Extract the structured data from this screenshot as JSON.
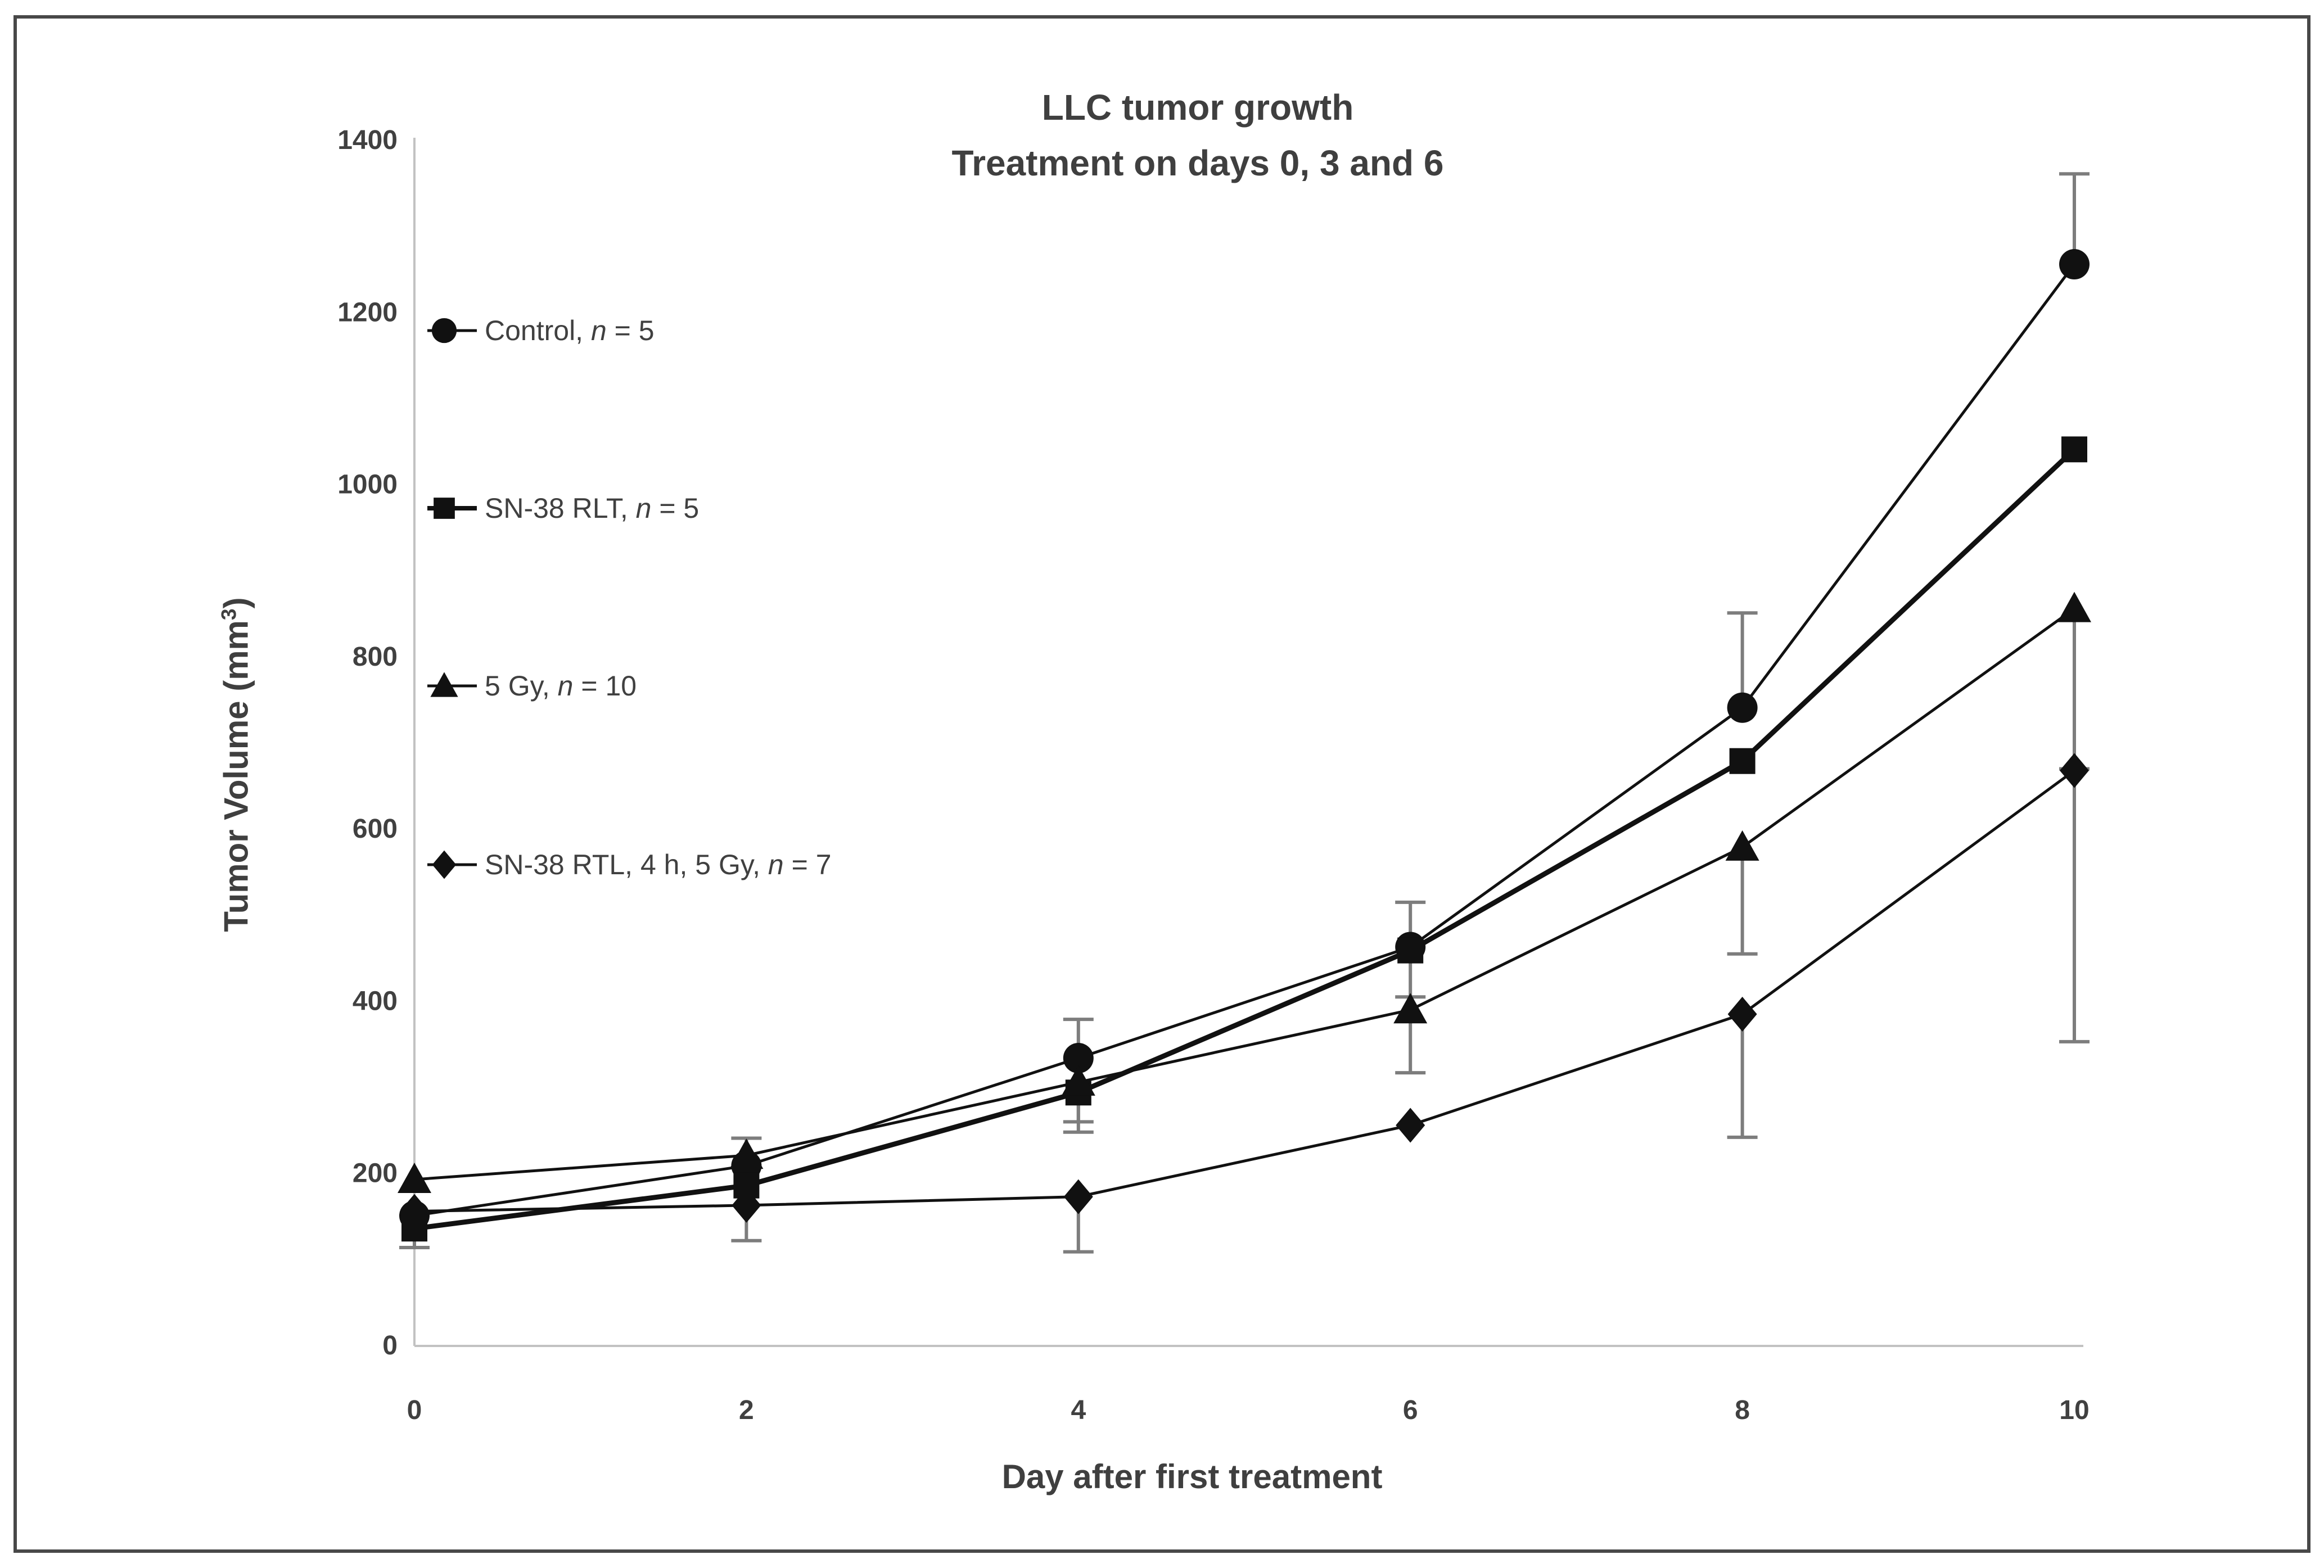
{
  "figure": {
    "title_line1": "LLC tumor growth",
    "title_line2": "Treatment on days 0, 3 and 6",
    "x_axis_title": "Day after first treatment",
    "y_axis_title_pre": "Tumor Volume (mm",
    "y_axis_title_sup": "3",
    "y_axis_title_post": ")"
  },
  "legend": {
    "entries": [
      {
        "marker": "circle",
        "prefix": "Control, ",
        "n": "n",
        "suffix": " = 5"
      },
      {
        "marker": "square",
        "prefix": "SN-38 RLT, ",
        "n": "n",
        "suffix": " = 5"
      },
      {
        "marker": "triangle",
        "prefix": "5 Gy, ",
        "n": "n",
        "suffix": " = 10"
      },
      {
        "marker": "diamond",
        "prefix": "SN-38 RTL, 4 h, 5 Gy, ",
        "n": "n",
        "suffix": " = 7"
      }
    ]
  },
  "chart_data": {
    "type": "line",
    "title": "LLC tumor growth — Treatment on days 0, 3 and 6",
    "xlabel": "Day after first treatment",
    "ylabel": "Tumor Volume (mm3)",
    "x": [
      0,
      2,
      4,
      6,
      8,
      10
    ],
    "x_ticks": [
      0,
      2,
      4,
      6,
      8,
      10
    ],
    "y_ticks": [
      0,
      200,
      400,
      600,
      800,
      1000,
      1200,
      1400
    ],
    "xlim": [
      0,
      10
    ],
    "ylim": [
      0,
      1400
    ],
    "grid": false,
    "legend_position": "upper-left-inside",
    "series": [
      {
        "name": "Control, n = 5",
        "marker": "circle",
        "values": [
          150,
          208,
          333,
          462,
          740,
          1255
        ],
        "err_up": [
          null,
          null,
          45,
          52,
          110,
          105
        ],
        "err_dn": [
          null,
          null,
          null,
          58,
          null,
          null
        ]
      },
      {
        "name": "SN-38 RLT, n = 5",
        "marker": "square",
        "values": [
          135,
          185,
          293,
          458,
          678,
          1040
        ],
        "err_up": [
          null,
          null,
          null,
          null,
          null,
          null
        ],
        "err_dn": [
          22,
          null,
          46,
          null,
          null,
          null
        ]
      },
      {
        "name": "5 Gy, n = 10",
        "marker": "triangle",
        "values": [
          192,
          220,
          305,
          389,
          578,
          855
        ],
        "err_up": [
          null,
          20,
          null,
          null,
          null,
          null
        ],
        "err_dn": [
          null,
          null,
          46,
          73,
          124,
          186
        ]
      },
      {
        "name": "SN-38 RTL, 4 h, 5 Gy, n = 7",
        "marker": "diamond",
        "values": [
          155,
          162,
          172,
          255,
          384,
          667
        ],
        "err_up": [
          null,
          null,
          null,
          null,
          null,
          null
        ],
        "err_dn": [
          null,
          41,
          64,
          null,
          143,
          315
        ]
      }
    ],
    "series_color": "#111111",
    "error_bar_color": "#7d7d7d",
    "axis_color": "#c2c2c2",
    "text_color": "#3f3f3f"
  }
}
